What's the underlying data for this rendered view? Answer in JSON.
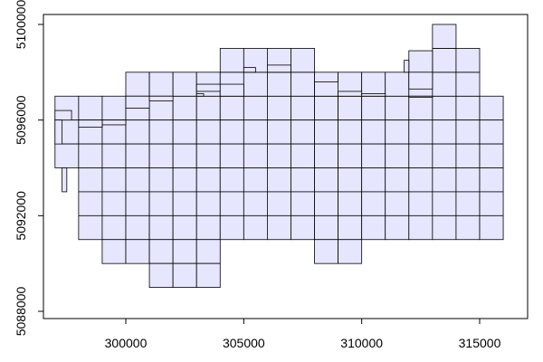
{
  "chart_data": {
    "type": "grid-map",
    "title": "",
    "xlabel": "",
    "ylabel": "",
    "xlim": [
      297000,
      316700
    ],
    "ylim": [
      5088000,
      5100400
    ],
    "x_ticks": [
      {
        "value": 300000,
        "label": "300000"
      },
      {
        "value": 305000,
        "label": "305000"
      },
      {
        "value": 310000,
        "label": "310000"
      },
      {
        "value": 315000,
        "label": "315000"
      }
    ],
    "y_ticks": [
      {
        "value": 5088000,
        "label": "5088000"
      },
      {
        "value": 5092000,
        "label": "5092000"
      },
      {
        "value": 5096000,
        "label": "5096000"
      },
      {
        "value": 5100000,
        "label": "5100000"
      }
    ],
    "fill_color": "#e6e6ff",
    "stroke_color": "#000000",
    "cell_size": 1000,
    "grid_cells": [
      {
        "x": 5096000,
        "cols": [
          297000,
          298000,
          299000,
          300000,
          301000,
          302000,
          303000,
          304000,
          305000,
          306000,
          307000,
          308000,
          309000,
          310000,
          311000,
          312000,
          313000,
          314000,
          315000
        ]
      },
      {
        "x": 5095000,
        "cols": [
          297000,
          298000,
          299000,
          300000,
          301000,
          302000,
          303000,
          304000,
          305000,
          306000,
          307000,
          308000,
          309000,
          310000,
          311000,
          312000,
          313000,
          314000,
          315000
        ]
      },
      {
        "x": 5094000,
        "cols": [
          297000,
          298000,
          299000,
          300000,
          301000,
          302000,
          303000,
          304000,
          305000,
          306000,
          307000,
          308000,
          309000,
          310000,
          311000,
          312000,
          313000,
          314000,
          315000
        ]
      },
      {
        "x": 5093000,
        "cols": [
          298000,
          299000,
          300000,
          301000,
          302000,
          303000,
          304000,
          305000,
          306000,
          307000,
          308000,
          309000,
          310000,
          311000,
          312000,
          313000,
          314000,
          315000
        ]
      },
      {
        "x": 5092000,
        "cols": [
          298000,
          299000,
          300000,
          301000,
          302000,
          303000,
          304000,
          305000,
          306000,
          307000,
          308000,
          309000,
          310000,
          311000,
          312000,
          313000,
          314000,
          315000
        ]
      },
      {
        "x": 5091000,
        "cols": [
          298000,
          299000,
          300000,
          301000,
          302000,
          303000,
          304000,
          305000,
          306000,
          307000,
          308000,
          309000,
          310000,
          311000,
          312000,
          313000,
          314000,
          315000
        ]
      },
      {
        "x": 5090000,
        "cols": [
          299000,
          300000,
          301000,
          302000,
          303000,
          308000,
          309000
        ]
      },
      {
        "x": 5089000,
        "cols": [
          301000,
          302000,
          303000
        ]
      },
      {
        "x": 5097000,
        "cols": [
          300000,
          301000,
          302000,
          303000,
          304000,
          305000,
          306000,
          307000,
          308000,
          309000,
          310000,
          311000,
          312000,
          313000,
          314000
        ]
      },
      {
        "x": 5098000,
        "cols": [
          304000,
          305000,
          306000,
          307000,
          313000,
          314000
        ]
      },
      {
        "x": 5099000,
        "cols": [
          313000
        ]
      }
    ],
    "partial_cells": [
      [
        297000,
        5096000,
        297700,
        5096400
      ],
      [
        297300,
        5093000,
        297500,
        5094000
      ],
      [
        297000,
        5095000,
        297300,
        5096000
      ],
      [
        299000,
        5096000,
        300000,
        5095800
      ],
      [
        298000,
        5096000,
        299000,
        5095700
      ],
      [
        300000,
        5097000,
        301000,
        5096500
      ],
      [
        301000,
        5097000,
        302000,
        5096800
      ],
      [
        303000,
        5097000,
        303300,
        5097100
      ],
      [
        303000,
        5097200,
        304000,
        5097500
      ],
      [
        304000,
        5097000,
        305000,
        5097500
      ],
      [
        305000,
        5098000,
        305500,
        5098200
      ],
      [
        306000,
        5098000,
        307000,
        5098300
      ],
      [
        308000,
        5097000,
        309000,
        5097600
      ],
      [
        309000,
        5097000,
        310000,
        5097200
      ],
      [
        310000,
        5097000,
        311000,
        5097100
      ],
      [
        311000,
        5097000,
        312000,
        5097000
      ],
      [
        312000,
        5098000,
        313000,
        5098900
      ],
      [
        311800,
        5098000,
        312000,
        5098500
      ],
      [
        312000,
        5097300,
        313000,
        5098000
      ],
      [
        312000,
        5097000,
        313000,
        5096950
      ],
      [
        314000,
        5098000,
        315000,
        5098000
      ],
      [
        300000,
        5090000,
        300000,
        5090000
      ]
    ]
  }
}
